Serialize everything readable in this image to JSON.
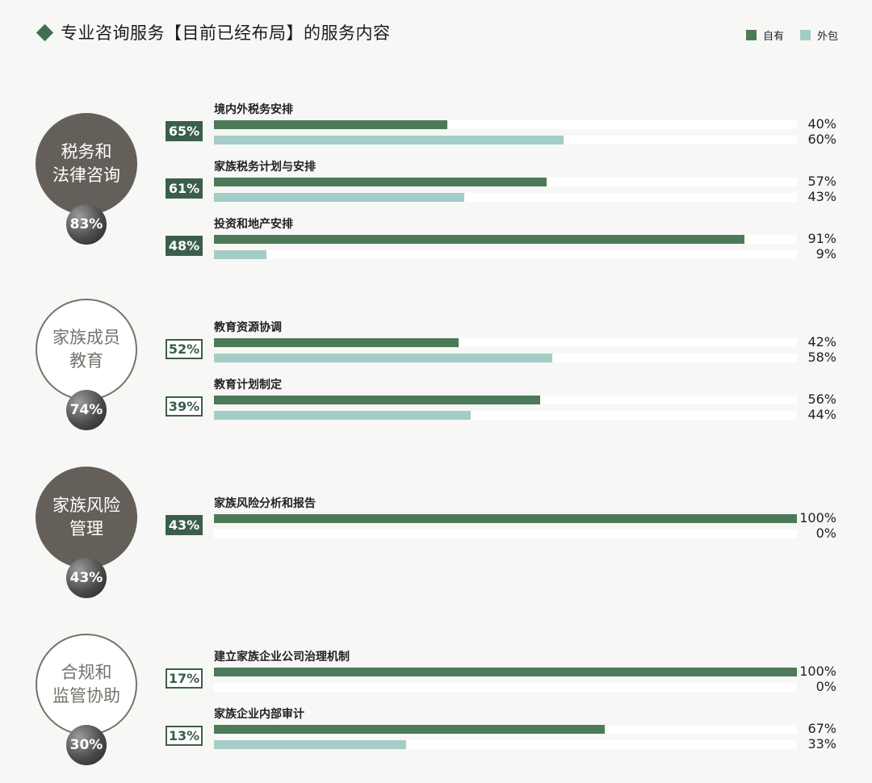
{
  "title": "专业咨询服务【目前已经布局】的服务内容",
  "legend": [
    {
      "label": "自有",
      "color": "#4c7a58"
    },
    {
      "label": "外包",
      "color": "#a3cdc6"
    }
  ],
  "chart_data": {
    "type": "bar",
    "orientation": "horizontal",
    "xlim": [
      0,
      100
    ],
    "series_names": [
      "自有",
      "外包"
    ],
    "series_colors": [
      "#4c7a58",
      "#a3cdc6"
    ],
    "groups": [
      {
        "name_lines": [
          "税务和",
          "法律咨询"
        ],
        "percent": "83%",
        "style": "filled",
        "items": [
          {
            "label": "境内外税务安排",
            "percent": "65%",
            "own": 40,
            "outsourced": 60,
            "own_label": "40%",
            "out_label": "60%"
          },
          {
            "label": "家族税务计划与安排",
            "percent": "61%",
            "own": 57,
            "outsourced": 43,
            "own_label": "57%",
            "out_label": "43%"
          },
          {
            "label": "投资和地产安排",
            "percent": "48%",
            "own": 91,
            "outsourced": 9,
            "own_label": "91%",
            "out_label": "9%"
          }
        ]
      },
      {
        "name_lines": [
          "家族成员",
          "教育"
        ],
        "percent": "74%",
        "style": "outline",
        "items": [
          {
            "label": "教育资源协调",
            "percent": "52%",
            "own": 42,
            "outsourced": 58,
            "own_label": "42%",
            "out_label": "58%"
          },
          {
            "label": "教育计划制定",
            "percent": "39%",
            "own": 56,
            "outsourced": 44,
            "own_label": "56%",
            "out_label": "44%"
          }
        ]
      },
      {
        "name_lines": [
          "家族风险",
          "管理"
        ],
        "percent": "43%",
        "style": "filled",
        "items": [
          {
            "label": "家族风险分析和报告",
            "percent": "43%",
            "own": 100,
            "outsourced": 0,
            "own_label": "100%",
            "out_label": "0%"
          }
        ]
      },
      {
        "name_lines": [
          "合规和",
          "监管协助"
        ],
        "percent": "30%",
        "style": "outline",
        "items": [
          {
            "label": "建立家族企业公司治理机制",
            "percent": "17%",
            "own": 100,
            "outsourced": 0,
            "own_label": "100%",
            "out_label": "0%"
          },
          {
            "label": "家族企业内部审计",
            "percent": "13%",
            "own": 67,
            "outsourced": 33,
            "own_label": "67%",
            "out_label": "33%"
          }
        ]
      }
    ]
  }
}
